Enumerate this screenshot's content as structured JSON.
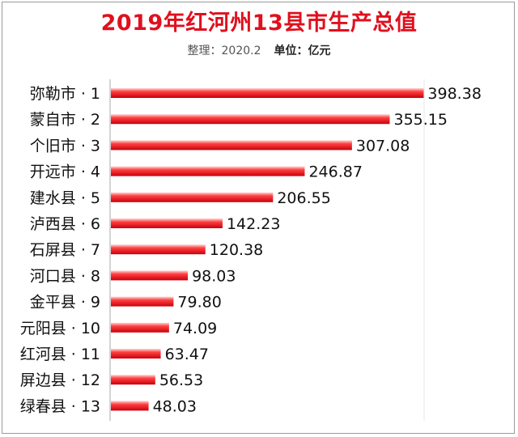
{
  "chart_data": {
    "type": "bar",
    "orientation": "horizontal",
    "title": "2019年红河州13县市生产总值",
    "note": "整理：2020.2",
    "unit": "单位：亿元",
    "xlabel": "",
    "ylabel": "",
    "xlim": [
      0,
      400
    ],
    "grid": false,
    "legend": "none",
    "bar_color": "#e8101c",
    "categories": [
      "弥勒市 · 1",
      "蒙自市 · 2",
      "个旧市 · 3",
      "开远市 · 4",
      "建水县 · 5",
      "泸西县 · 6",
      "石屏县 · 7",
      "河口县 · 8",
      "金平县 · 9",
      "元阳县 · 10",
      "红河县 · 11",
      "屏边县 · 12",
      "绿春县 · 13"
    ],
    "values": [
      398.38,
      355.15,
      307.08,
      246.87,
      206.55,
      142.23,
      120.38,
      98.03,
      79.8,
      74.09,
      63.47,
      56.53,
      48.03
    ],
    "value_labels": [
      "398.38",
      "355.15",
      "307.08",
      "246.87",
      "206.55",
      "142.23",
      "120.38",
      "98.03",
      "79.80",
      "74.09",
      "63.47",
      "56.53",
      "48.03"
    ]
  }
}
